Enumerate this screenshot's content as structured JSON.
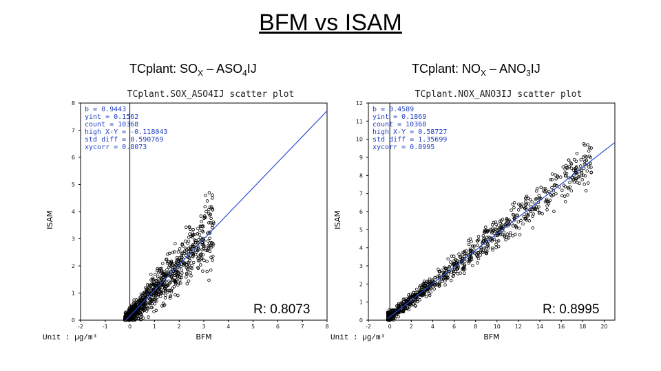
{
  "page_title": "BFM vs ISAM",
  "chart_data": [
    {
      "type": "scatter",
      "panel_title": {
        "prefix": "TCplant: SO",
        "sub1": "X",
        "mid": " – ASO",
        "sub2": "4",
        "suffix": "IJ"
      },
      "title": "TCplant.SOX_ASO4IJ  scatter  plot",
      "xlabel": "BFM",
      "ylabel": "ISAM",
      "xlim": [
        -2,
        8
      ],
      "ylim": [
        0,
        8
      ],
      "xticks": [
        -2,
        -1,
        0,
        1,
        2,
        3,
        4,
        5,
        6,
        7,
        8
      ],
      "yticks": [
        0,
        1,
        2,
        3,
        4,
        5,
        6,
        7,
        8
      ],
      "stats": [
        "b   = 0.9443",
        "yint  = 0.1562",
        "count = 10368",
        "high X-Y  = -0.118043",
        "std diff = 0.590769",
        "xycorr = 0.8073"
      ],
      "fit": {
        "slope": 0.9443,
        "intercept": 0.1562
      },
      "r_label": "R: 0.8073",
      "cloud": {
        "xmax": 3.6,
        "spread": 0.9,
        "seed": 7
      }
    },
    {
      "type": "scatter",
      "panel_title": {
        "prefix": "TCplant: NO",
        "sub1": "X",
        "mid": " – ANO",
        "sub2": "3",
        "suffix": "IJ"
      },
      "title": "TCplant.NOX_ANO3IJ  scatter  plot",
      "xlabel": "BFM",
      "ylabel": "ISAM",
      "xlim": [
        -2,
        21
      ],
      "ylim": [
        0,
        12
      ],
      "xticks": [
        -2,
        0,
        2,
        4,
        6,
        8,
        10,
        12,
        14,
        16,
        18,
        20
      ],
      "yticks": [
        0,
        1,
        2,
        3,
        4,
        5,
        6,
        7,
        8,
        9,
        10,
        11,
        12
      ],
      "stats": [
        "b   = 0.4589",
        "yint  = 0.1869",
        "count = 10368",
        "high X-Y  = 0.58727",
        "std diff = 1.35699",
        "xycorr = 0.8995"
      ],
      "fit": {
        "slope": 0.4589,
        "intercept": 0.1869
      },
      "r_label": "R: 0.8995",
      "cloud": {
        "xmax": 19,
        "spread": 0.8,
        "seed": 11
      }
    }
  ],
  "unit_label": "Unit : µg/m³"
}
